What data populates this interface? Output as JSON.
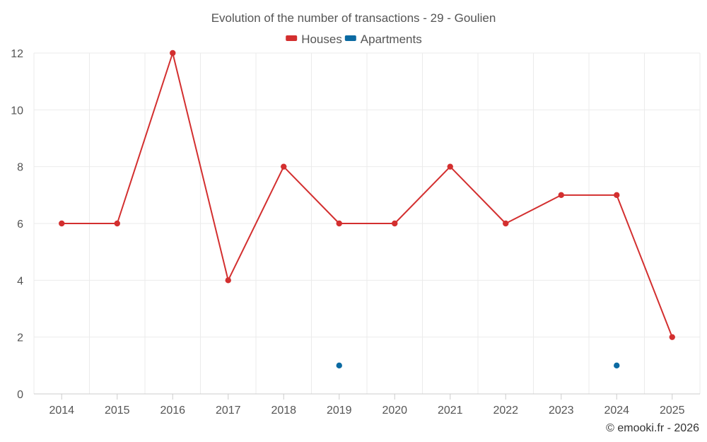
{
  "chart_data": {
    "type": "line",
    "title": "Evolution of the number of transactions - 29 - Goulien",
    "categories": [
      "2014",
      "2015",
      "2016",
      "2017",
      "2018",
      "2019",
      "2020",
      "2021",
      "2022",
      "2023",
      "2024",
      "2025"
    ],
    "series": [
      {
        "name": "Houses",
        "color": "#d32f2f",
        "mode": "line",
        "values": [
          6,
          6,
          12,
          4,
          8,
          6,
          6,
          8,
          6,
          7,
          7,
          2
        ]
      },
      {
        "name": "Apartments",
        "color": "#0b6aa2",
        "mode": "points",
        "values": [
          null,
          null,
          null,
          null,
          null,
          1,
          null,
          null,
          null,
          null,
          1,
          null
        ]
      }
    ],
    "ylim": [
      0,
      12
    ],
    "yticks": [
      0,
      2,
      4,
      6,
      8,
      10,
      12
    ],
    "xlabel": "",
    "ylabel": "",
    "grid": true,
    "legend": "top-center"
  },
  "credit": "© emooki.fr - 2026"
}
